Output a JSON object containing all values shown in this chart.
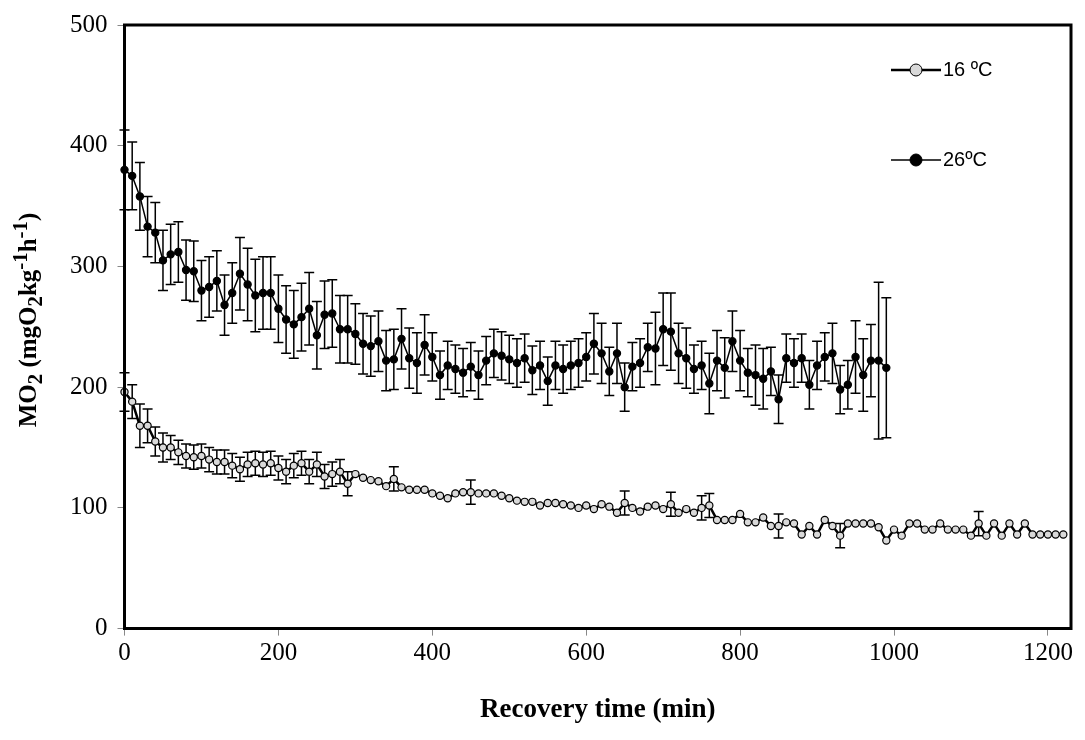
{
  "chart_data": {
    "type": "line",
    "xlabel": "Recovery time (min)",
    "ylabel": "MO$_{2}$ (mgO$_{2}$kg$^{-1}$h$^{-1}$)",
    "xlim": [
      0,
      1230
    ],
    "xticks": [
      0,
      200,
      400,
      600,
      800,
      1000,
      1200
    ],
    "ylim": [
      0,
      500
    ],
    "yticks": [
      0,
      100,
      200,
      300,
      400,
      500
    ],
    "grid": false,
    "legend": "top right",
    "marker": "circle",
    "line_style": "solid",
    "series": [
      {
        "name": "16 ºC",
        "color": "#d9d9d9",
        "x": [
          0,
          10,
          20,
          30,
          40,
          50,
          60,
          70,
          80,
          90,
          100,
          110,
          120,
          130,
          140,
          150,
          160,
          170,
          180,
          190,
          200,
          210,
          220,
          230,
          240,
          250,
          260,
          270,
          280,
          290,
          300,
          310,
          320,
          330,
          340,
          350,
          360,
          370,
          380,
          390,
          400,
          410,
          420,
          430,
          440,
          450,
          460,
          470,
          480,
          490,
          500,
          510,
          520,
          530,
          540,
          550,
          560,
          570,
          580,
          590,
          600,
          610,
          620,
          630,
          640,
          650,
          660,
          670,
          680,
          690,
          700,
          710,
          720,
          730,
          740,
          750,
          760,
          770,
          780,
          790,
          800,
          810,
          820,
          830,
          840,
          850,
          860,
          870,
          880,
          890,
          900,
          910,
          920,
          930,
          940,
          950,
          960,
          970,
          980,
          990,
          1000,
          1010,
          1020,
          1030,
          1040,
          1050,
          1060,
          1070,
          1080,
          1090,
          1100,
          1110,
          1120,
          1130,
          1140,
          1150,
          1160,
          1170,
          1180,
          1190,
          1200,
          1210,
          1220
        ],
        "values": [
          196,
          188,
          168,
          168,
          155,
          150,
          150,
          146,
          143,
          142,
          143,
          140,
          138,
          138,
          135,
          132,
          136,
          137,
          136,
          137,
          133,
          130,
          135,
          137,
          130,
          136,
          126,
          128,
          130,
          120,
          128,
          125,
          123,
          122,
          118,
          124,
          117,
          115,
          115,
          115,
          112,
          110,
          108,
          112,
          113,
          113,
          112,
          112,
          112,
          110,
          108,
          106,
          105,
          105,
          102,
          104,
          104,
          103,
          102,
          100,
          102,
          99,
          103,
          101,
          96,
          104,
          100,
          97,
          101,
          102,
          99,
          103,
          96,
          99,
          96,
          100,
          102,
          90,
          90,
          90,
          95,
          88,
          88,
          92,
          85,
          85,
          88,
          87,
          78,
          85,
          78,
          90,
          85,
          77,
          87,
          87,
          87,
          87,
          84,
          73,
          82,
          77,
          87,
          87,
          82,
          82,
          87,
          82,
          82,
          82,
          77,
          87,
          77,
          87,
          77,
          87,
          78,
          87,
          78,
          78,
          78,
          78,
          78
        ],
        "errors": [
          16,
          14,
          18,
          14,
          12,
          12,
          10,
          10,
          10,
          10,
          10,
          10,
          10,
          10,
          10,
          10,
          10,
          10,
          10,
          10,
          10,
          10,
          10,
          10,
          10,
          10,
          10,
          10,
          10,
          10,
          null,
          null,
          null,
          null,
          null,
          10,
          null,
          null,
          null,
          null,
          null,
          null,
          null,
          null,
          null,
          10,
          null,
          null,
          null,
          null,
          null,
          null,
          null,
          null,
          null,
          null,
          null,
          null,
          null,
          null,
          null,
          null,
          null,
          null,
          null,
          10,
          null,
          null,
          null,
          null,
          null,
          10,
          null,
          null,
          null,
          10,
          10,
          null,
          null,
          null,
          null,
          null,
          null,
          null,
          null,
          10,
          null,
          null,
          null,
          null,
          null,
          null,
          null,
          10,
          null,
          null,
          null,
          null,
          null,
          null,
          null,
          null,
          null,
          null,
          null,
          null,
          null,
          null,
          null,
          null,
          null,
          10,
          null,
          null,
          null,
          null,
          null,
          null,
          null,
          null,
          null,
          null,
          null
        ]
      },
      {
        "name": "26ºC",
        "color": "#000000",
        "x": [
          0,
          10,
          20,
          30,
          40,
          50,
          60,
          70,
          80,
          90,
          100,
          110,
          120,
          130,
          140,
          150,
          160,
          170,
          180,
          190,
          200,
          210,
          220,
          230,
          240,
          250,
          260,
          270,
          280,
          290,
          300,
          310,
          320,
          330,
          340,
          350,
          360,
          370,
          380,
          390,
          400,
          410,
          420,
          430,
          440,
          450,
          460,
          470,
          480,
          490,
          500,
          510,
          520,
          530,
          540,
          550,
          560,
          570,
          580,
          590,
          600,
          610,
          620,
          630,
          640,
          650,
          660,
          670,
          680,
          690,
          700,
          710,
          720,
          730,
          740,
          750,
          760,
          770,
          780,
          790,
          800,
          810,
          820,
          830,
          840,
          850,
          860,
          870,
          880,
          890,
          900,
          910,
          920,
          930,
          940,
          950,
          960,
          970,
          980,
          990
        ],
        "values": [
          380,
          375,
          358,
          333,
          328,
          305,
          310,
          312,
          297,
          296,
          280,
          283,
          288,
          268,
          278,
          294,
          285,
          276,
          278,
          278,
          265,
          256,
          252,
          258,
          265,
          243,
          260,
          261,
          248,
          248,
          244,
          236,
          234,
          238,
          222,
          223,
          240,
          224,
          220,
          235,
          225,
          210,
          218,
          215,
          212,
          217,
          210,
          222,
          228,
          226,
          223,
          220,
          224,
          214,
          218,
          205,
          218,
          215,
          218,
          220,
          225,
          236,
          228,
          213,
          228,
          200,
          217,
          220,
          233,
          232,
          248,
          246,
          228,
          224,
          215,
          218,
          203,
          222,
          216,
          238,
          222,
          212,
          210,
          207,
          213,
          190,
          224,
          220,
          224,
          202,
          218,
          225,
          228,
          198,
          202,
          225,
          210,
          222,
          222,
          216
        ],
        "errors": [
          33,
          28,
          28,
          25,
          25,
          25,
          25,
          25,
          25,
          25,
          25,
          25,
          25,
          25,
          25,
          30,
          30,
          30,
          30,
          30,
          28,
          28,
          28,
          28,
          30,
          28,
          28,
          28,
          28,
          28,
          25,
          25,
          25,
          25,
          25,
          25,
          25,
          25,
          25,
          25,
          20,
          20,
          20,
          20,
          20,
          20,
          20,
          20,
          20,
          20,
          20,
          20,
          20,
          20,
          20,
          20,
          20,
          20,
          20,
          20,
          20,
          25,
          25,
          20,
          25,
          20,
          20,
          20,
          20,
          30,
          30,
          32,
          25,
          25,
          20,
          20,
          25,
          25,
          25,
          25,
          25,
          20,
          25,
          25,
          20,
          20,
          20,
          20,
          20,
          20,
          20,
          20,
          25,
          20,
          20,
          30,
          30,
          30,
          65,
          58
        ]
      }
    ]
  }
}
